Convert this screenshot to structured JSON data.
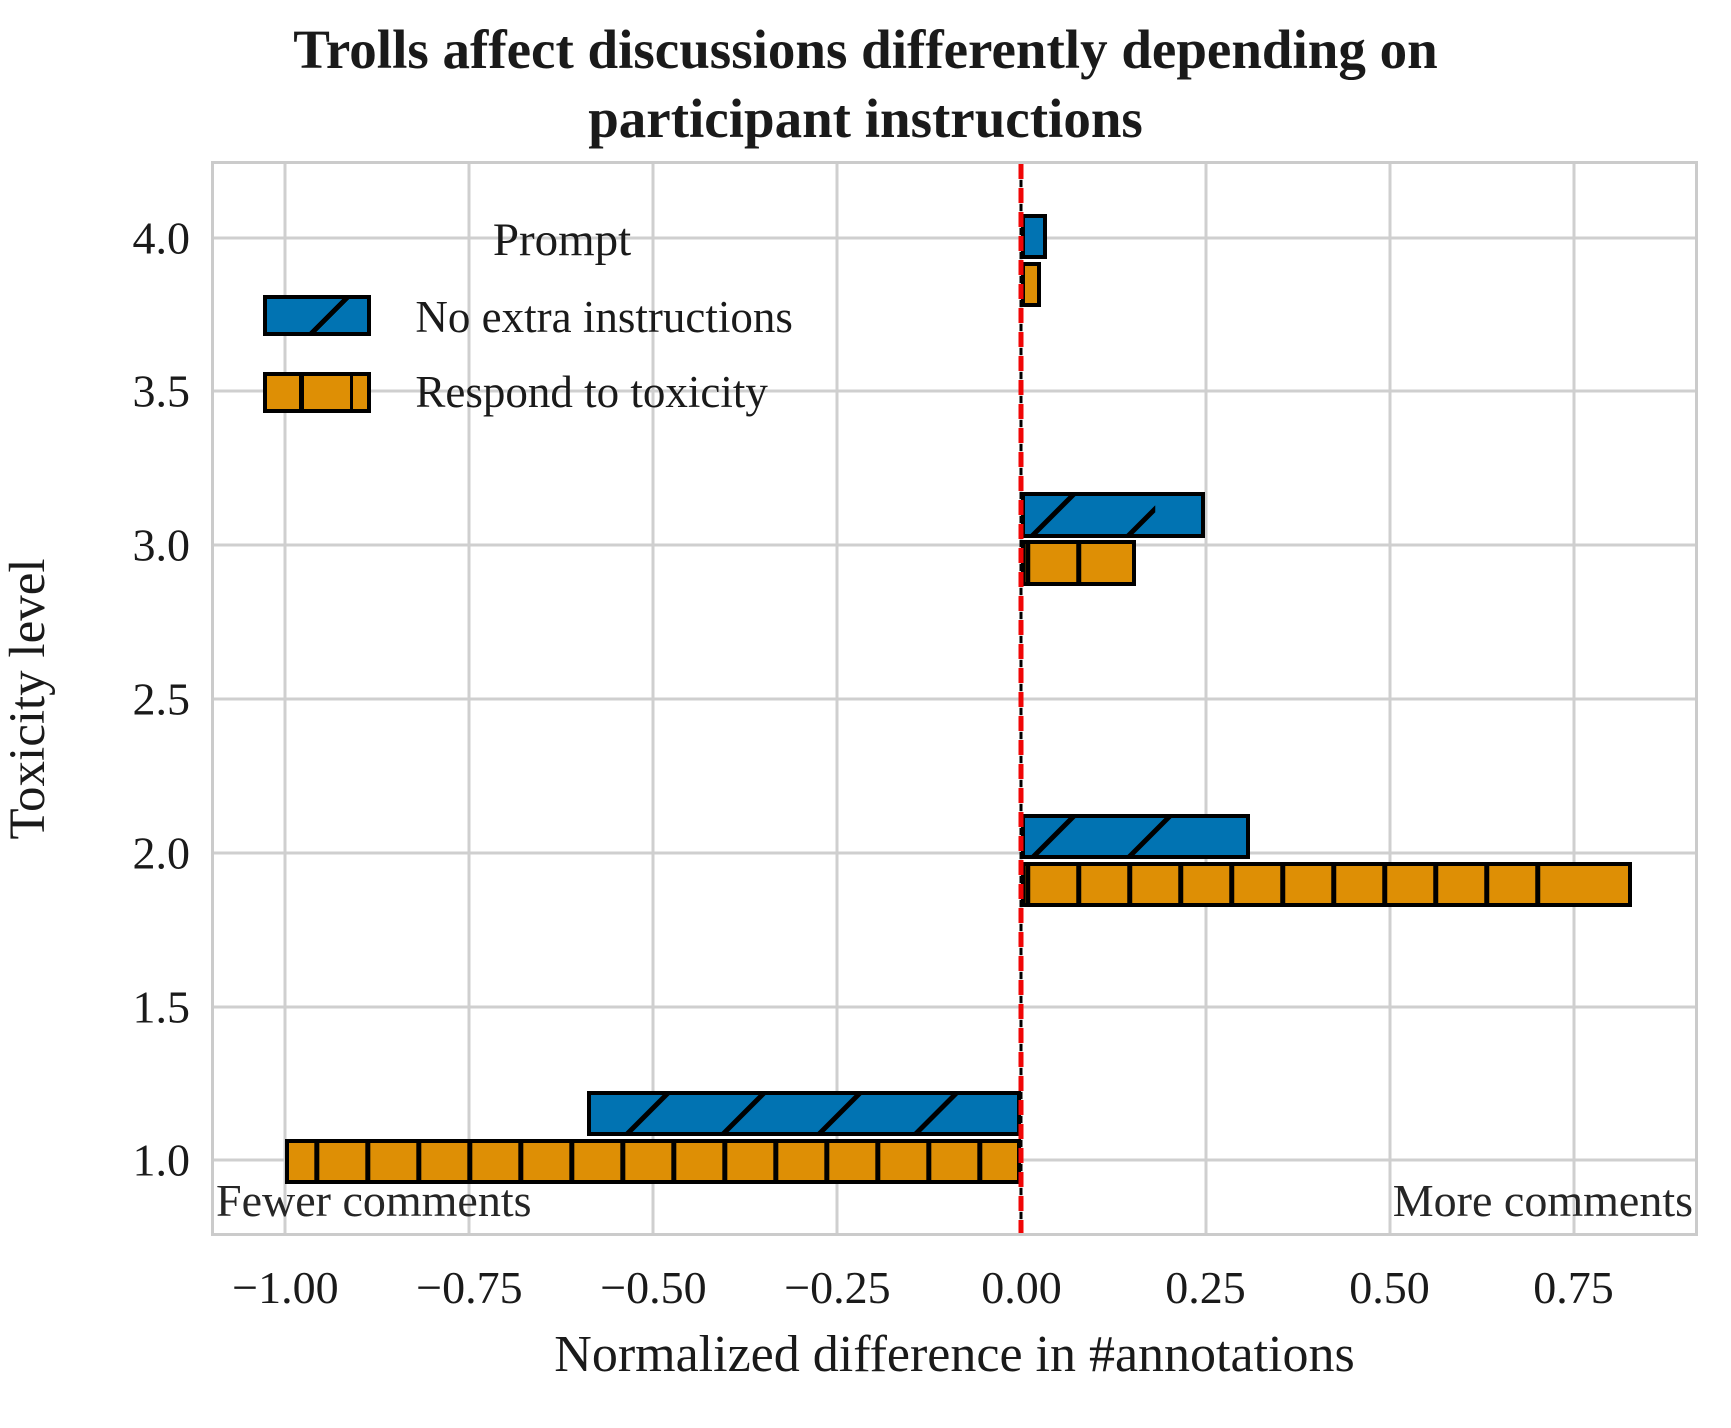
{
  "title": {
    "line1": "Trolls affect discussions differently depending on",
    "line2": "participant instructions"
  },
  "chart_data": {
    "type": "bar",
    "orientation": "horizontal-grouped",
    "title": "Trolls affect discussions differently depending on participant instructions",
    "xlabel": "Normalized difference in #annotations",
    "ylabel": "Toxicity level",
    "grid": true,
    "x_axis": {
      "min": -1.097,
      "max": 0.915,
      "ticks": [
        -1.0,
        -0.75,
        -0.5,
        -0.25,
        0.0,
        0.25,
        0.5,
        0.75
      ],
      "tick_labels": [
        "−1.00",
        "−0.75",
        "−0.50",
        "−0.25",
        "0.00",
        "0.25",
        "0.50",
        "0.75"
      ]
    },
    "y_axis": {
      "min": 0.764,
      "max": 4.239,
      "ticks": [
        4.0,
        3.5,
        3.0,
        2.5,
        2.0,
        1.5,
        1.0
      ],
      "tick_labels": [
        "4.0",
        "3.5",
        "3.0",
        "2.5",
        "2.0",
        "1.5",
        "1.0"
      ]
    },
    "categories": [
      "1.0",
      "2.0",
      "3.0",
      "4.0"
    ],
    "group_centers": [
      1.075,
      1.975,
      3.02,
      3.925
    ],
    "bar_offset": 0.078,
    "bar_height": 0.148,
    "series": [
      {
        "name": "No extra instructions",
        "color": "#0173B2",
        "hatch": "diagonal",
        "values": [
          -0.59,
          0.31,
          0.25,
          0.035
        ]
      },
      {
        "name": "Respond to toxicity",
        "color": "#DE8F05",
        "hatch": "vertical",
        "values": [
          -1.0,
          0.83,
          0.155,
          0.026
        ]
      }
    ],
    "zero_line": {
      "x": 0.0,
      "color": "#f00505",
      "style": "dashed"
    },
    "legend": {
      "title": "Prompt",
      "position": "upper-left",
      "entries": [
        "No extra instructions",
        "Respond to toxicity"
      ]
    },
    "annotations": [
      {
        "text": "Fewer comments",
        "position": "bottom-left"
      },
      {
        "text": "More comments",
        "position": "bottom-right"
      }
    ]
  }
}
